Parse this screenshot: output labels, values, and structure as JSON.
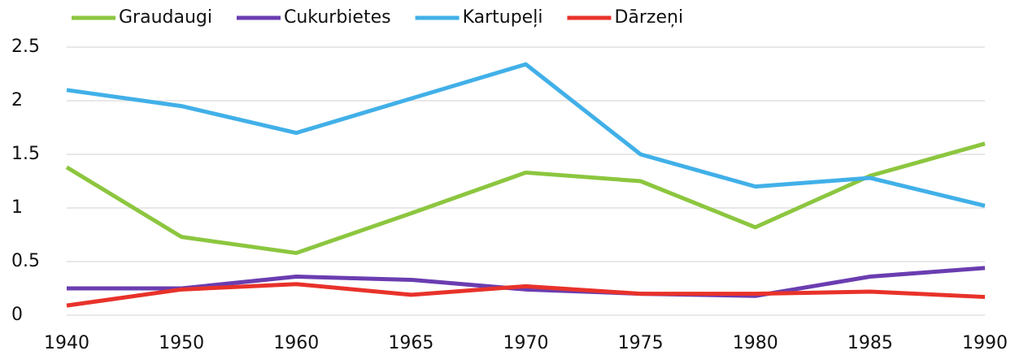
{
  "chart_data": {
    "type": "line",
    "categories": [
      "1940",
      "1950",
      "1960",
      "1965",
      "1970",
      "1975",
      "1980",
      "1985",
      "1990"
    ],
    "series": [
      {
        "name": "Graudaugi",
        "color": "#8cc63f",
        "values": [
          1.38,
          0.73,
          0.58,
          0.95,
          1.33,
          1.25,
          0.82,
          1.3,
          1.6
        ]
      },
      {
        "name": "Cukurbietes",
        "color": "#6a3db0",
        "values": [
          0.25,
          0.25,
          0.36,
          0.33,
          0.24,
          0.2,
          0.18,
          0.36,
          0.44
        ]
      },
      {
        "name": "Kartupeļi",
        "color": "#41b0e8",
        "values": [
          2.1,
          1.95,
          1.7,
          2.02,
          2.34,
          1.5,
          1.2,
          1.28,
          1.02
        ]
      },
      {
        "name": "Dārzeņi",
        "color": "#e8322a",
        "values": [
          0.09,
          0.24,
          0.29,
          0.19,
          0.27,
          0.2,
          0.2,
          0.22,
          0.17
        ]
      }
    ],
    "ylim": [
      0,
      2.5
    ],
    "yticks": [
      0,
      0.5,
      1,
      1.5,
      2,
      2.5
    ],
    "grid": true,
    "legend": "top"
  }
}
